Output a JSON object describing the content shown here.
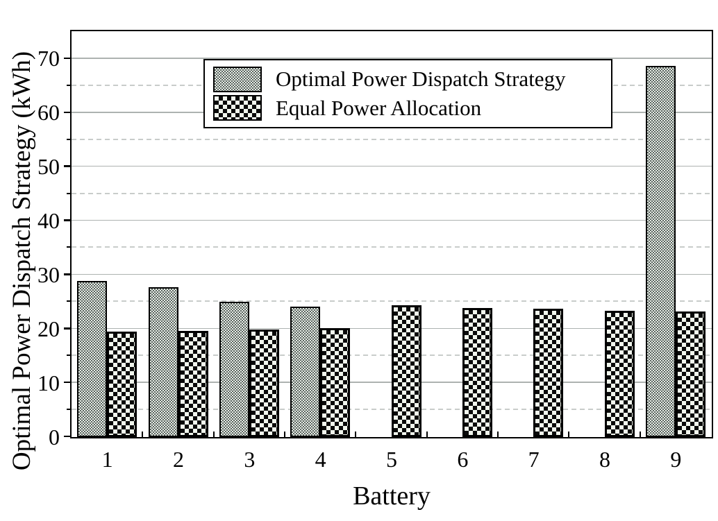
{
  "figure": {
    "background": "#ffffff"
  },
  "legend": {
    "items": [
      {
        "label": "Optimal Power Dispatch Strategy",
        "pattern": "fine-stipple"
      },
      {
        "label": "Equal Power Allocation",
        "pattern": "checkerboard"
      }
    ]
  },
  "colors": {
    "optimal_fill_dark": "#59645e",
    "optimal_fill_light": "#e9ede8",
    "equal_fill_dark": "#0a0a0a",
    "equal_fill_light": "#f1f6ed",
    "grid_major": "#adb2b0",
    "grid_minor": "#c8ccca",
    "axis": "#000000"
  },
  "chart_data": {
    "type": "bar",
    "title": "",
    "xlabel": "Battery",
    "ylabel": "Optimal Power Dispatch Strategy (kWh)",
    "categories": [
      "1",
      "2",
      "3",
      "4",
      "5",
      "6",
      "7",
      "8",
      "9"
    ],
    "series": [
      {
        "name": "Optimal Power Dispatch Strategy",
        "pattern": "fine-stipple",
        "values": [
          28.9,
          27.8,
          25.0,
          24.2,
          0,
          0,
          0,
          0,
          68.7
        ]
      },
      {
        "name": "Equal Power Allocation",
        "pattern": "checkerboard",
        "values": [
          19.5,
          19.6,
          19.9,
          20.1,
          24.4,
          23.9,
          23.7,
          23.4,
          23.2
        ]
      }
    ],
    "ylim": [
      0,
      75
    ],
    "y_major_ticks": [
      0,
      10,
      20,
      30,
      40,
      50,
      60,
      70
    ],
    "y_minor_ticks": [
      5,
      15,
      25,
      35,
      45,
      55,
      65
    ],
    "grid": {
      "major": "solid",
      "minor": "dashed",
      "vertical": "off"
    },
    "legend_position": "top-center-inside",
    "axis_box": "full-frame"
  }
}
